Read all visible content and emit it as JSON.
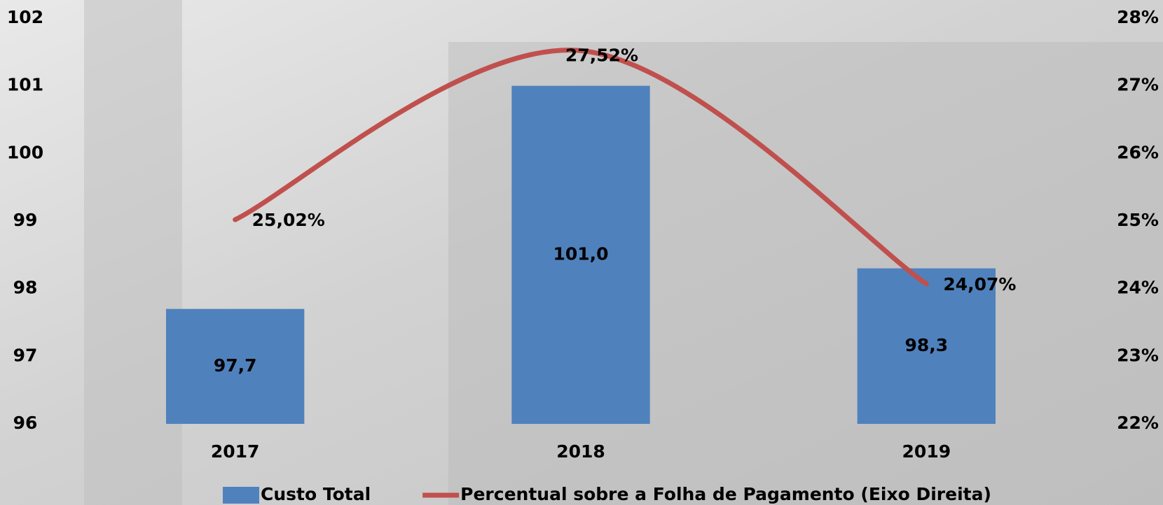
{
  "chart_data": {
    "type": "bar-line",
    "categories": [
      "2017",
      "2018",
      "2019"
    ],
    "series": [
      {
        "name": "Custo Total",
        "type": "bar",
        "color": "#4f81bd",
        "values": [
          97.7,
          101.0,
          98.3
        ],
        "value_labels": [
          "97,7",
          "101,0",
          "98,3"
        ]
      },
      {
        "name": "Percentual sobre a Folha de Pagamento (Eixo Direita)",
        "type": "line",
        "axis": "y2",
        "color": "#c0504d",
        "values": [
          25.02,
          27.52,
          24.07
        ],
        "value_labels": [
          "25,02%",
          "27,52%",
          "24,07%"
        ]
      }
    ],
    "ylim": [
      96,
      102
    ],
    "yticks": [
      96,
      97,
      98,
      99,
      100,
      101,
      102
    ],
    "y2lim": [
      22,
      28
    ],
    "y2ticks": [
      {
        "value": 22,
        "label": "22%"
      },
      {
        "value": 23,
        "label": "23%"
      },
      {
        "value": 24,
        "label": "24%"
      },
      {
        "value": 25,
        "label": "25%"
      },
      {
        "value": 26,
        "label": "26%"
      },
      {
        "value": 27,
        "label": "27%"
      },
      {
        "value": 28,
        "label": "28%"
      }
    ],
    "grid": false
  }
}
